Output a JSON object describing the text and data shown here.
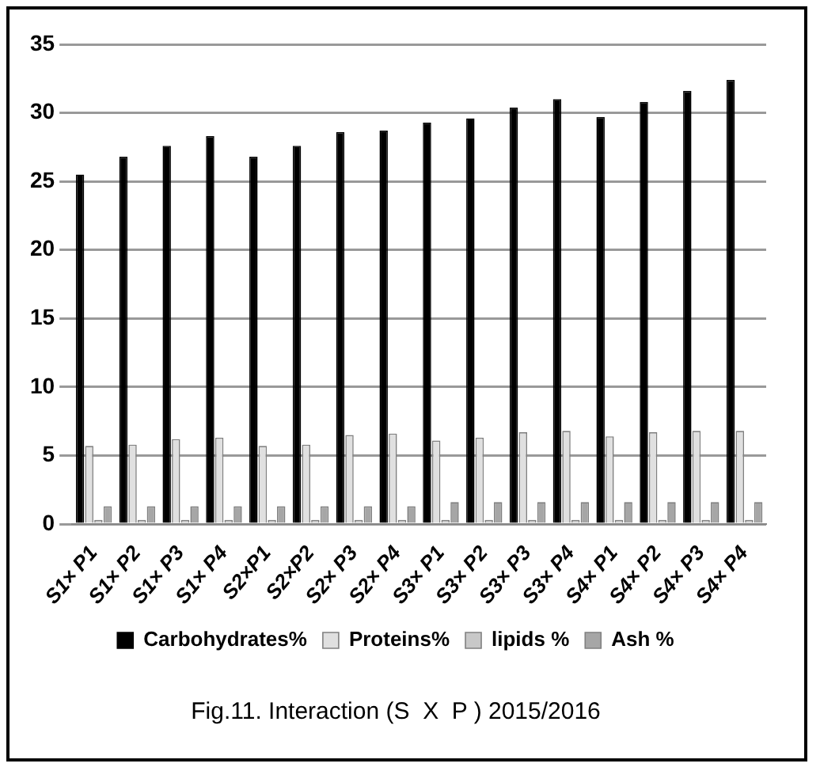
{
  "chart_data": {
    "type": "bar",
    "title": "Fig.11. Interaction (S  X  P ) 2015/2016",
    "categories": [
      "S1× P1",
      "S1× P2",
      "S1× P3",
      "S1× P4",
      "S2×P1",
      "S2×P2",
      "S2× P3",
      "S2× P4",
      "S3× P1",
      "S3× P2",
      "S3× P3",
      "S3× P4",
      "S4× P1",
      "S4× P2",
      "S4× P3",
      "S4× P4"
    ],
    "series": [
      {
        "name": "Carbohydrates%",
        "color": "#000000",
        "values": [
          25.5,
          26.8,
          27.6,
          28.3,
          26.8,
          27.6,
          28.6,
          28.7,
          29.3,
          29.6,
          30.4,
          31.0,
          29.7,
          30.8,
          31.6,
          32.4
        ]
      },
      {
        "name": "Proteins%",
        "color": "#e0e0e0",
        "values": [
          5.7,
          5.8,
          6.2,
          6.3,
          5.7,
          5.8,
          6.5,
          6.6,
          6.1,
          6.3,
          6.7,
          6.8,
          6.4,
          6.7,
          6.8,
          6.8
        ]
      },
      {
        "name": "lipids %",
        "color": "#c8c8c8",
        "values": [
          0.3,
          0.3,
          0.3,
          0.3,
          0.3,
          0.3,
          0.3,
          0.3,
          0.3,
          0.3,
          0.3,
          0.3,
          0.3,
          0.3,
          0.3,
          0.3
        ]
      },
      {
        "name": "Ash %",
        "color": "#a6a6a6",
        "values": [
          1.3,
          1.3,
          1.3,
          1.3,
          1.3,
          1.3,
          1.3,
          1.3,
          1.6,
          1.6,
          1.6,
          1.6,
          1.6,
          1.6,
          1.6,
          1.6
        ]
      }
    ],
    "ylim": [
      0,
      35
    ],
    "yticks": [
      0,
      5,
      10,
      15,
      20,
      25,
      30,
      35
    ],
    "grid": "y",
    "legend": "bottom"
  }
}
